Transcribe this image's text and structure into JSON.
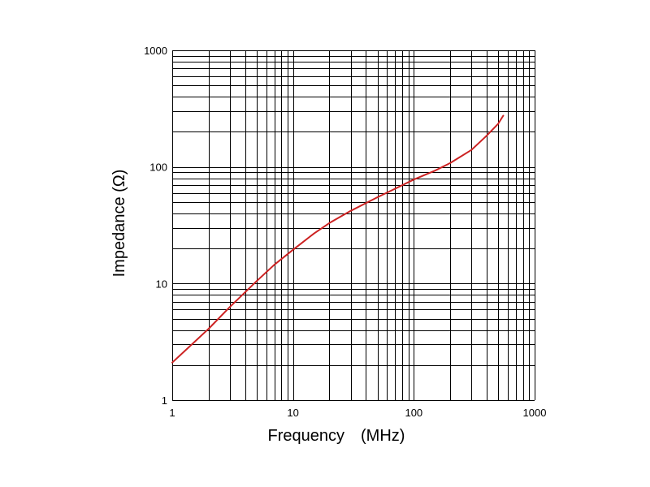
{
  "chart_data": {
    "type": "line",
    "title": "",
    "xlabel": "Frequency　(MHz)",
    "ylabel": "Impedance (Ω)",
    "xscale": "log",
    "yscale": "log",
    "xlim": [
      1,
      1000
    ],
    "ylim": [
      1,
      1000
    ],
    "grid": true,
    "x_ticks": [
      {
        "value": 1,
        "label": "1"
      },
      {
        "value": 10,
        "label": "10"
      },
      {
        "value": 100,
        "label": "100"
      },
      {
        "value": 1000,
        "label": "1000"
      }
    ],
    "y_ticks": [
      {
        "value": 1,
        "label": "1"
      },
      {
        "value": 10,
        "label": "10"
      },
      {
        "value": 100,
        "label": "100"
      },
      {
        "value": 1000,
        "label": "1000"
      }
    ],
    "series": [
      {
        "color": "#cc2222",
        "x": [
          1,
          1.5,
          2,
          3,
          5,
          7,
          10,
          15,
          20,
          30,
          50,
          70,
          100,
          150,
          200,
          300,
          400,
          500,
          550
        ],
        "y": [
          2.1,
          3.1,
          4.1,
          6.3,
          10.5,
          14.5,
          19.5,
          27,
          33,
          42,
          55,
          65,
          78,
          93,
          108,
          140,
          185,
          235,
          275
        ]
      }
    ]
  }
}
